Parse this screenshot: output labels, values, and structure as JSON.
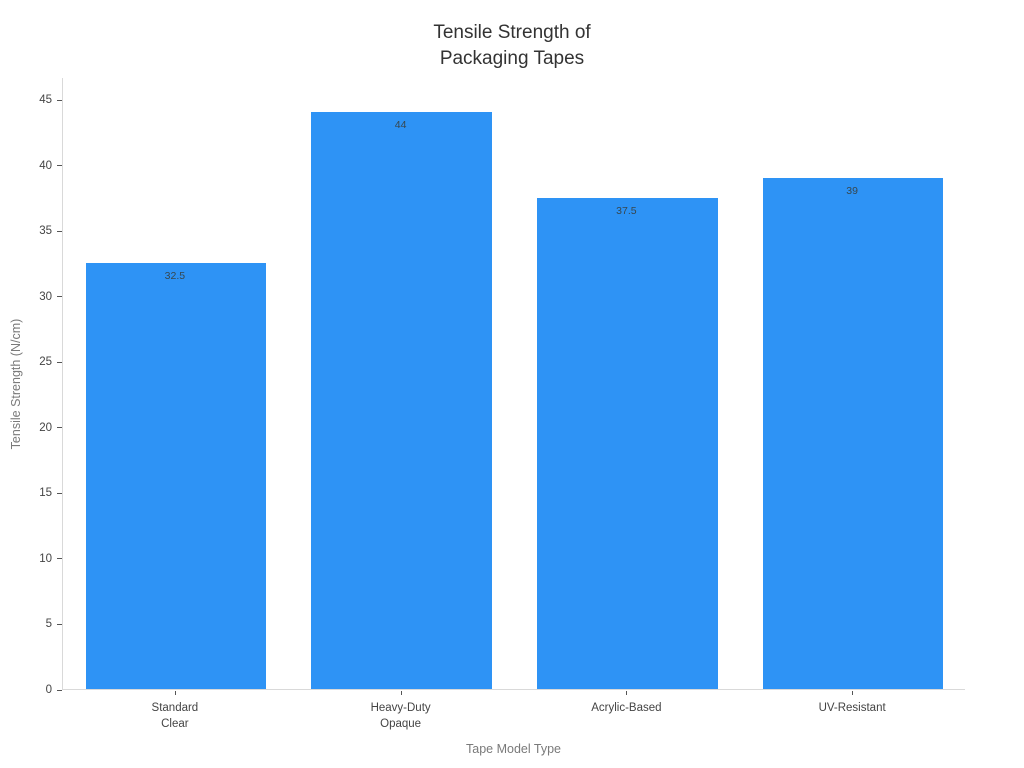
{
  "chart_data": {
    "type": "bar",
    "title": "Tensile Strength of\nPackaging Tapes",
    "xlabel": "Tape Model Type",
    "ylabel": "Tensile Strength (N/cm)",
    "categories": [
      "Standard\nClear",
      "Heavy-Duty\nOpaque",
      "Acrylic-Based",
      "UV-Resistant"
    ],
    "values": [
      32.5,
      44,
      37.5,
      39
    ],
    "value_labels": [
      "32.5",
      "44",
      "37.5",
      "39"
    ],
    "yticks": [
      0,
      5,
      10,
      15,
      20,
      25,
      30,
      35,
      40,
      45
    ],
    "ylim": [
      0,
      46.7
    ],
    "grid": false,
    "legend": null,
    "bar_color": "#2E93F5",
    "bar_width_fraction": 0.8,
    "value_label_color": "#37474f",
    "spine_color": "#d9d9d9",
    "tick_color": "#555555",
    "tick_label_color": "#444444",
    "axis_title_color": "#7a7a7a",
    "title_color": "#333333",
    "background_color": "#ffffff"
  }
}
